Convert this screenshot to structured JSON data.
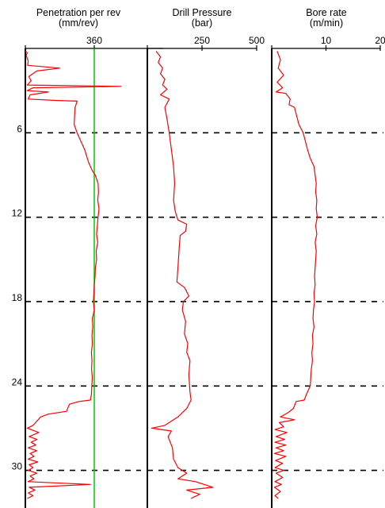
{
  "chart_data": {
    "type": "line",
    "y_axis": {
      "ylim": [
        0,
        35
      ],
      "inverted": true,
      "tick_labels": [
        "6",
        "12",
        "18",
        "24",
        "30"
      ],
      "ticks": [
        6,
        12,
        18,
        24,
        30
      ]
    },
    "grid": "dashed horizontal lines at labelled depths",
    "line_color": "#ff0000",
    "reference_color": "#00cc00",
    "panels": [
      {
        "id": "penetration",
        "title_lines": [
          "Penetration per rev",
          "(mm/rev)"
        ],
        "xlim": [
          0,
          720
        ],
        "ticks": [
          0,
          360
        ],
        "tick_labels": [
          "",
          "360"
        ],
        "reference_line": 360,
        "series": [
          {
            "points": [
              [
                0,
                0.2
              ],
              [
                10,
                0.3
              ],
              [
                5,
                0.5
              ],
              [
                15,
                0.9
              ],
              [
                12,
                1.2
              ],
              [
                180,
                1.4
              ],
              [
                60,
                1.6
              ],
              [
                18,
                2.0
              ],
              [
                30,
                2.3
              ],
              [
                10,
                2.6
              ],
              [
                500,
                2.7
              ],
              [
                40,
                2.8
              ],
              [
                10,
                3.0
              ],
              [
                120,
                3.1
              ],
              [
                25,
                3.3
              ],
              [
                15,
                3.6
              ],
              [
                170,
                3.7
              ],
              [
                270,
                3.75
              ],
              [
                260,
                4.2
              ],
              [
                255,
                5.4
              ],
              [
                270,
                6.0
              ],
              [
                290,
                6.6
              ],
              [
                310,
                7.2
              ],
              [
                330,
                8.1
              ],
              [
                350,
                8.7
              ],
              [
                365,
                9.0
              ],
              [
                380,
                9.6
              ],
              [
                382,
                10.2
              ],
              [
                378,
                10.8
              ],
              [
                385,
                11.4
              ],
              [
                380,
                12.0
              ],
              [
                376,
                12.6
              ],
              [
                372,
                13.2
              ],
              [
                378,
                13.8
              ],
              [
                370,
                14.4
              ],
              [
                372,
                15.0
              ],
              [
                366,
                15.6
              ],
              [
                364,
                16.2
              ],
              [
                360,
                16.8
              ],
              [
                358,
                17.4
              ],
              [
                355,
                18.0
              ],
              [
                360,
                18.6
              ],
              [
                350,
                19.2
              ],
              [
                352,
                19.8
              ],
              [
                348,
                20.4
              ],
              [
                350,
                21.0
              ],
              [
                345,
                21.6
              ],
              [
                348,
                22.2
              ],
              [
                346,
                22.8
              ],
              [
                350,
                23.4
              ],
              [
                347,
                24.0
              ],
              [
                345,
                24.6
              ],
              [
                340,
                25.0
              ],
              [
                280,
                25.1
              ],
              [
                230,
                25.3
              ],
              [
                215,
                25.8
              ],
              [
                120,
                26.0
              ],
              [
                80,
                26.2
              ],
              [
                60,
                26.5
              ],
              [
                40,
                26.8
              ],
              [
                10,
                27.0
              ],
              [
                70,
                27.3
              ],
              [
                20,
                27.6
              ],
              [
                60,
                27.8
              ],
              [
                30,
                28.0
              ],
              [
                55,
                28.2
              ],
              [
                15,
                28.4
              ],
              [
                60,
                28.6
              ],
              [
                25,
                28.8
              ],
              [
                45,
                29.0
              ],
              [
                15,
                29.2
              ],
              [
                65,
                29.4
              ],
              [
                20,
                29.6
              ],
              [
                40,
                29.8
              ],
              [
                15,
                30.0
              ],
              [
                60,
                30.2
              ],
              [
                25,
                30.4
              ],
              [
                45,
                30.6
              ],
              [
                15,
                30.8
              ],
              [
                340,
                31.0
              ],
              [
                20,
                31.2
              ],
              [
                50,
                31.4
              ],
              [
                15,
                31.6
              ],
              [
                40,
                31.8
              ],
              [
                10,
                32.0
              ]
            ]
          }
        ]
      },
      {
        "id": "pressure",
        "title_lines": [
          "Drill Pressure",
          "(bar)"
        ],
        "xlim": [
          0,
          500
        ],
        "ticks": [
          0,
          250,
          500
        ],
        "tick_labels": [
          "",
          "250",
          "500"
        ],
        "series": [
          {
            "points": [
              [
                40,
                0.2
              ],
              [
                60,
                0.6
              ],
              [
                50,
                1.0
              ],
              [
                70,
                1.4
              ],
              [
                60,
                1.8
              ],
              [
                80,
                2.2
              ],
              [
                70,
                2.6
              ],
              [
                90,
                2.9
              ],
              [
                60,
                3.3
              ],
              [
                100,
                3.6
              ],
              [
                80,
                4.2
              ],
              [
                90,
                5.0
              ],
              [
                100,
                6.0
              ],
              [
                110,
                7.2
              ],
              [
                120,
                8.4
              ],
              [
                125,
                9.6
              ],
              [
                120,
                10.8
              ],
              [
                128,
                11.6
              ],
              [
                140,
                12.2
              ],
              [
                180,
                12.5
              ],
              [
                175,
                13.0
              ],
              [
                150,
                13.3
              ],
              [
                145,
                14.4
              ],
              [
                140,
                15.6
              ],
              [
                135,
                16.6
              ],
              [
                170,
                17.0
              ],
              [
                190,
                17.6
              ],
              [
                165,
                18.0
              ],
              [
                160,
                18.6
              ],
              [
                175,
                19.4
              ],
              [
                170,
                20.3
              ],
              [
                185,
                21.0
              ],
              [
                180,
                21.6
              ],
              [
                195,
                22.2
              ],
              [
                190,
                23.2
              ],
              [
                195,
                24.4
              ],
              [
                200,
                25.0
              ],
              [
                180,
                25.6
              ],
              [
                140,
                26.2
              ],
              [
                80,
                26.8
              ],
              [
                20,
                27.0
              ],
              [
                110,
                27.2
              ],
              [
                95,
                27.6
              ],
              [
                115,
                28.4
              ],
              [
                120,
                29.2
              ],
              [
                140,
                29.8
              ],
              [
                180,
                30.2
              ],
              [
                140,
                30.6
              ],
              [
                220,
                30.8
              ],
              [
                300,
                31.2
              ],
              [
                180,
                31.4
              ],
              [
                240,
                31.7
              ],
              [
                200,
                32.0
              ]
            ]
          }
        ]
      },
      {
        "id": "borerate",
        "title_lines": [
          "Bore rate",
          "(m/min)"
        ],
        "xlim": [
          0,
          20
        ],
        "ticks": [
          0,
          10,
          20
        ],
        "tick_labels": [
          "",
          "10",
          "20"
        ],
        "series": [
          {
            "points": [
              [
                1,
                0.2
              ],
              [
                1.6,
                0.8
              ],
              [
                1.2,
                1.4
              ],
              [
                2.2,
                1.9
              ],
              [
                1.0,
                2.4
              ],
              [
                2.0,
                2.8
              ],
              [
                0.8,
                3.1
              ],
              [
                2.6,
                3.2
              ],
              [
                3.4,
                3.6
              ],
              [
                3.2,
                4.0
              ],
              [
                4.2,
                4.2
              ],
              [
                4.6,
                4.8
              ],
              [
                5.0,
                5.4
              ],
              [
                5.8,
                6.0
              ],
              [
                6.2,
                6.6
              ],
              [
                6.6,
                7.2
              ],
              [
                7.1,
                7.8
              ],
              [
                7.8,
                8.4
              ],
              [
                8.0,
                9.0
              ],
              [
                8.2,
                9.6
              ],
              [
                8.1,
                10.2
              ],
              [
                8.3,
                10.8
              ],
              [
                8.2,
                11.4
              ],
              [
                8.4,
                12.0
              ],
              [
                8.1,
                12.6
              ],
              [
                8.3,
                13.2
              ],
              [
                8.0,
                13.8
              ],
              [
                8.2,
                14.4
              ],
              [
                8.1,
                15.0
              ],
              [
                8.0,
                15.6
              ],
              [
                7.9,
                16.2
              ],
              [
                8.0,
                16.8
              ],
              [
                7.8,
                17.4
              ],
              [
                7.9,
                18.0
              ],
              [
                7.7,
                18.6
              ],
              [
                7.6,
                19.2
              ],
              [
                7.8,
                19.8
              ],
              [
                7.5,
                20.4
              ],
              [
                7.6,
                21.0
              ],
              [
                7.4,
                21.6
              ],
              [
                7.5,
                22.2
              ],
              [
                7.3,
                22.8
              ],
              [
                7.2,
                23.4
              ],
              [
                7.1,
                24.0
              ],
              [
                6.4,
                24.6
              ],
              [
                6.0,
                25.0
              ],
              [
                4.5,
                25.1
              ],
              [
                4.0,
                25.6
              ],
              [
                3.0,
                25.9
              ],
              [
                1.6,
                26.2
              ],
              [
                4.2,
                26.4
              ],
              [
                1.4,
                26.6
              ],
              [
                2.2,
                26.9
              ],
              [
                0.6,
                27.1
              ],
              [
                2.8,
                27.3
              ],
              [
                0.8,
                27.6
              ],
              [
                2.4,
                27.8
              ],
              [
                0.6,
                28.0
              ],
              [
                2.6,
                28.2
              ],
              [
                0.8,
                28.4
              ],
              [
                2.2,
                28.6
              ],
              [
                0.5,
                28.8
              ],
              [
                2.6,
                29.0
              ],
              [
                0.7,
                29.3
              ],
              [
                2.0,
                29.5
              ],
              [
                0.6,
                29.8
              ],
              [
                2.2,
                30.0
              ],
              [
                0.8,
                30.2
              ],
              [
                2.0,
                30.5
              ],
              [
                0.6,
                30.8
              ],
              [
                1.8,
                31.0
              ],
              [
                0.5,
                31.2
              ],
              [
                1.6,
                31.5
              ],
              [
                0.6,
                31.8
              ],
              [
                1.2,
                32.0
              ]
            ]
          }
        ]
      }
    ]
  }
}
